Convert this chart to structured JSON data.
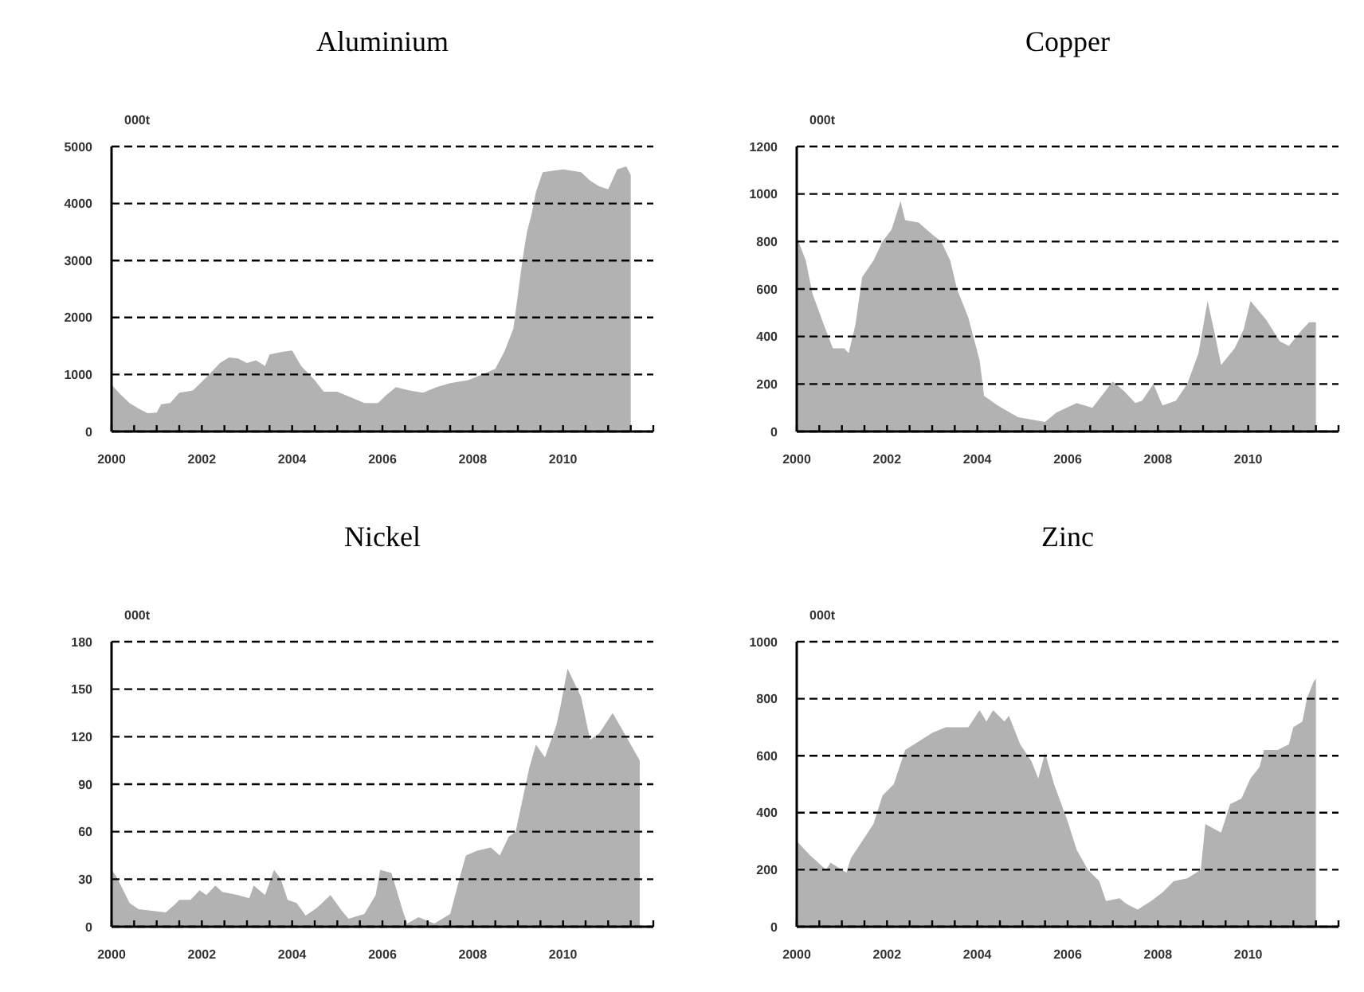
{
  "chart_data": [
    {
      "type": "area",
      "title": "Aluminium",
      "ylabel": "000t",
      "color": "#b2b2b2",
      "grid": "y",
      "xlim": [
        2000,
        2012
      ],
      "ylim": [
        0,
        5000
      ],
      "yticks": [
        0,
        1000,
        2000,
        3000,
        4000,
        5000
      ],
      "xticks": [
        2000,
        {
          "value": 2000.5,
          "label": null
        },
        {
          "value": 2001,
          "label": null
        },
        {
          "value": 2001.5,
          "label": null
        },
        2002,
        {
          "value": 2002.5,
          "label": null
        },
        {
          "value": 2003,
          "label": null
        },
        {
          "value": 2003.5,
          "label": null
        },
        2004,
        {
          "value": 2004.5,
          "label": null
        },
        {
          "value": 2005,
          "label": null
        },
        {
          "value": 2005.5,
          "label": null
        },
        2006,
        {
          "value": 2006.5,
          "label": null
        },
        {
          "value": 2007,
          "label": null
        },
        {
          "value": 2007.5,
          "label": null
        },
        2008,
        {
          "value": 2008.5,
          "label": null
        },
        {
          "value": 2009,
          "label": null
        },
        {
          "value": 2009.5,
          "label": null
        },
        2010,
        {
          "value": 2010.5,
          "label": null
        },
        {
          "value": 2011,
          "label": null
        },
        {
          "value": 2011.5,
          "label": null
        },
        {
          "value": 2012,
          "label": null
        }
      ],
      "x": [
        2000.0,
        2000.2,
        2000.4,
        2000.6,
        2000.8,
        2001.0,
        2001.1,
        2001.3,
        2001.5,
        2001.8,
        2002.1,
        2002.4,
        2002.6,
        2002.8,
        2003.0,
        2003.2,
        2003.4,
        2003.5,
        2003.8,
        2004.0,
        2004.2,
        2004.5,
        2004.7,
        2005.0,
        2005.3,
        2005.6,
        2005.9,
        2006.1,
        2006.3,
        2006.6,
        2006.9,
        2007.2,
        2007.5,
        2007.9,
        2008.2,
        2008.5,
        2008.7,
        2008.9,
        2009.0,
        2009.1,
        2009.2,
        2009.3,
        2009.4,
        2009.55,
        2010.0,
        2010.4,
        2010.6,
        2010.8,
        2011.0,
        2011.2,
        2011.4,
        2011.5
      ],
      "values": [
        820,
        650,
        500,
        400,
        320,
        330,
        480,
        500,
        680,
        720,
        950,
        1200,
        1300,
        1280,
        1200,
        1250,
        1150,
        1350,
        1400,
        1420,
        1150,
        900,
        700,
        700,
        600,
        500,
        500,
        650,
        780,
        720,
        680,
        780,
        850,
        900,
        1000,
        1100,
        1400,
        1800,
        2400,
        3000,
        3500,
        3800,
        4200,
        4550,
        4600,
        4550,
        4400,
        4300,
        4250,
        4600,
        4650,
        4500
      ]
    },
    {
      "type": "area",
      "title": "Copper",
      "ylabel": "000t",
      "color": "#b2b2b2",
      "grid": "y",
      "xlim": [
        2000,
        2012
      ],
      "ylim": [
        0,
        1200
      ],
      "yticks": [
        0,
        200,
        400,
        600,
        800,
        1000,
        1200
      ],
      "xticks": [
        2000,
        {
          "value": 2000.5,
          "label": null
        },
        {
          "value": 2001,
          "label": null
        },
        {
          "value": 2001.5,
          "label": null
        },
        2002,
        {
          "value": 2002.5,
          "label": null
        },
        {
          "value": 2003,
          "label": null
        },
        {
          "value": 2003.5,
          "label": null
        },
        2004,
        {
          "value": 2004.5,
          "label": null
        },
        {
          "value": 2005,
          "label": null
        },
        {
          "value": 2005.5,
          "label": null
        },
        2006,
        {
          "value": 2006.5,
          "label": null
        },
        {
          "value": 2007,
          "label": null
        },
        {
          "value": 2007.5,
          "label": null
        },
        2008,
        {
          "value": 2008.5,
          "label": null
        },
        {
          "value": 2009,
          "label": null
        },
        {
          "value": 2009.5,
          "label": null
        },
        2010,
        {
          "value": 2010.5,
          "label": null
        },
        {
          "value": 2011,
          "label": null
        },
        {
          "value": 2011.5,
          "label": null
        },
        {
          "value": 2012,
          "label": null
        }
      ],
      "x": [
        2000.0,
        2000.2,
        2000.35,
        2000.6,
        2000.8,
        2001.05,
        2001.15,
        2001.3,
        2001.45,
        2001.7,
        2001.9,
        2002.1,
        2002.3,
        2002.4,
        2002.7,
        2003.0,
        2003.2,
        2003.4,
        2003.55,
        2003.8,
        2004.05,
        2004.15,
        2004.45,
        2004.9,
        2005.5,
        2005.75,
        2006.2,
        2006.55,
        2007.0,
        2007.25,
        2007.5,
        2007.65,
        2007.9,
        2008.1,
        2008.4,
        2008.65,
        2008.9,
        2009.1,
        2009.25,
        2009.4,
        2009.7,
        2009.9,
        2010.05,
        2010.4,
        2010.7,
        2010.9,
        2011.2,
        2011.35,
        2011.5
      ],
      "values": [
        820,
        720,
        580,
        450,
        350,
        350,
        330,
        450,
        650,
        720,
        800,
        850,
        970,
        890,
        880,
        830,
        800,
        720,
        600,
        480,
        300,
        150,
        110,
        60,
        40,
        80,
        120,
        100,
        210,
        170,
        120,
        130,
        200,
        110,
        130,
        200,
        330,
        550,
        420,
        280,
        350,
        430,
        550,
        470,
        380,
        360,
        430,
        460,
        460
      ]
    },
    {
      "type": "area",
      "title": "Nickel",
      "ylabel": "000t",
      "color": "#b2b2b2",
      "grid": "y",
      "xlim": [
        2000,
        2012
      ],
      "ylim": [
        0,
        180
      ],
      "yticks": [
        0,
        30,
        60,
        90,
        120,
        150,
        180
      ],
      "xticks": [
        2000,
        {
          "value": 2000.5,
          "label": null
        },
        {
          "value": 2001,
          "label": null
        },
        {
          "value": 2001.5,
          "label": null
        },
        2002,
        {
          "value": 2002.5,
          "label": null
        },
        {
          "value": 2003,
          "label": null
        },
        {
          "value": 2003.5,
          "label": null
        },
        2004,
        {
          "value": 2004.5,
          "label": null
        },
        {
          "value": 2005,
          "label": null
        },
        {
          "value": 2005.5,
          "label": null
        },
        2006,
        {
          "value": 2006.5,
          "label": null
        },
        {
          "value": 2007,
          "label": null
        },
        {
          "value": 2007.5,
          "label": null
        },
        2008,
        {
          "value": 2008.5,
          "label": null
        },
        {
          "value": 2009,
          "label": null
        },
        {
          "value": 2009.5,
          "label": null
        },
        2010,
        {
          "value": 2010.5,
          "label": null
        },
        {
          "value": 2011,
          "label": null
        },
        {
          "value": 2011.5,
          "label": null
        },
        {
          "value": 2012,
          "label": null
        }
      ],
      "x": [
        2000.0,
        2000.1,
        2000.4,
        2000.6,
        2000.9,
        2001.2,
        2001.4,
        2001.5,
        2001.75,
        2001.95,
        2002.1,
        2002.3,
        2002.45,
        2002.8,
        2003.05,
        2003.15,
        2003.4,
        2003.6,
        2003.75,
        2003.9,
        2004.1,
        2004.3,
        2004.55,
        2004.85,
        2005.1,
        2005.25,
        2005.6,
        2005.85,
        2005.95,
        2006.2,
        2006.45,
        2006.55,
        2006.8,
        2007.15,
        2007.5,
        2007.75,
        2007.85,
        2008.1,
        2008.4,
        2008.6,
        2008.8,
        2008.95,
        2009.1,
        2009.25,
        2009.4,
        2009.6,
        2009.85,
        2009.95,
        2010.1,
        2010.4,
        2010.6,
        2010.8,
        2011.1,
        2011.4,
        2011.6,
        2011.7
      ],
      "values": [
        36,
        32,
        15,
        11,
        10,
        9,
        14,
        17,
        17,
        23,
        20,
        26,
        22,
        20,
        18,
        26,
        20,
        36,
        30,
        17,
        15,
        7,
        12,
        20,
        10,
        5,
        8,
        20,
        36,
        34,
        10,
        2,
        6,
        2,
        8,
        35,
        45,
        48,
        50,
        45,
        57,
        60,
        80,
        100,
        115,
        107,
        127,
        140,
        163,
        145,
        118,
        122,
        135,
        120,
        110,
        105
      ]
    },
    {
      "type": "area",
      "title": "Zinc",
      "ylabel": "000t",
      "color": "#b2b2b2",
      "grid": "y",
      "xlim": [
        2000,
        2012
      ],
      "ylim": [
        0,
        1000
      ],
      "yticks": [
        0,
        200,
        400,
        600,
        800,
        1000
      ],
      "xticks": [
        2000,
        {
          "value": 2000.5,
          "label": null
        },
        {
          "value": 2001,
          "label": null
        },
        {
          "value": 2001.5,
          "label": null
        },
        2002,
        {
          "value": 2002.5,
          "label": null
        },
        {
          "value": 2003,
          "label": null
        },
        {
          "value": 2003.5,
          "label": null
        },
        2004,
        {
          "value": 2004.5,
          "label": null
        },
        {
          "value": 2005,
          "label": null
        },
        {
          "value": 2005.5,
          "label": null
        },
        2006,
        {
          "value": 2006.5,
          "label": null
        },
        {
          "value": 2007,
          "label": null
        },
        {
          "value": 2007.5,
          "label": null
        },
        2008,
        {
          "value": 2008.5,
          "label": null
        },
        {
          "value": 2009,
          "label": null
        },
        {
          "value": 2009.5,
          "label": null
        },
        2010,
        {
          "value": 2010.5,
          "label": null
        },
        {
          "value": 2011,
          "label": null
        },
        {
          "value": 2011.5,
          "label": null
        },
        {
          "value": 2012,
          "label": null
        }
      ],
      "x": [
        2000.0,
        2000.3,
        2000.65,
        2000.75,
        2001.0,
        2001.1,
        2001.2,
        2001.45,
        2001.7,
        2001.9,
        2002.15,
        2002.4,
        2002.6,
        2003.0,
        2003.3,
        2003.8,
        2004.05,
        2004.2,
        2004.35,
        2004.6,
        2004.7,
        2004.95,
        2005.2,
        2005.35,
        2005.5,
        2005.7,
        2006.0,
        2006.2,
        2006.45,
        2006.7,
        2006.85,
        2007.15,
        2007.3,
        2007.55,
        2007.85,
        2008.1,
        2008.35,
        2008.65,
        2008.95,
        2009.05,
        2009.4,
        2009.6,
        2009.85,
        2010.05,
        2010.25,
        2010.35,
        2010.65,
        2010.9,
        2011.0,
        2011.2,
        2011.3,
        2011.45,
        2011.5
      ],
      "values": [
        300,
        250,
        200,
        225,
        200,
        190,
        240,
        300,
        360,
        460,
        500,
        620,
        640,
        680,
        700,
        700,
        760,
        720,
        760,
        720,
        740,
        640,
        580,
        520,
        610,
        500,
        370,
        270,
        200,
        160,
        90,
        100,
        80,
        60,
        90,
        120,
        160,
        170,
        200,
        360,
        330,
        430,
        450,
        520,
        560,
        620,
        620,
        640,
        700,
        720,
        800,
        860,
        870
      ]
    }
  ]
}
